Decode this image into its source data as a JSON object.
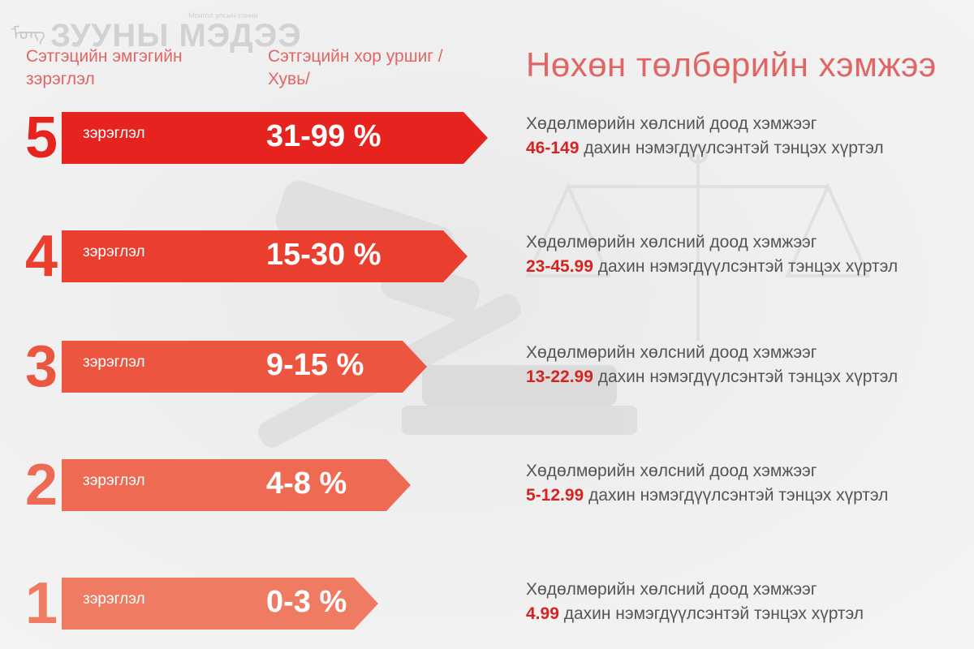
{
  "logo": {
    "name": "ЗУУНЫ МЭДЭЭ",
    "tagline": "Монгол улсын сонин"
  },
  "headers": {
    "level": "Сэтгэцийн эмгэгийн зэрэглэл",
    "harm": "Сэтгэцийн хор уршиг /Хувь/",
    "title": "Нөхөн төлбөрийн хэмжээ"
  },
  "colors": {
    "level5": "#e6231e",
    "level4": "#ea3e2e",
    "level3": "#ec5641",
    "level2": "#ee6a52",
    "level1": "#ef7c62",
    "header_text": "#e06666",
    "highlight": "#d7231f"
  },
  "rows": [
    {
      "level": "5",
      "level_word": "зэрэглэл",
      "percent": "31-99 %",
      "desc_line1": "Хөдөлмөрийн хөлсний доод хэмжээг",
      "times": "46-149",
      "desc_line2": " дахин нэмэгдүүлсэнтэй тэнцэх хүртэл"
    },
    {
      "level": "4",
      "level_word": "зэрэглэл",
      "percent": "15-30 %",
      "desc_line1": "Хөдөлмөрийн хөлсний доод хэмжээг",
      "times": "23-45.99",
      "desc_line2": " дахин нэмэгдүүлсэнтэй тэнцэх хүртэл"
    },
    {
      "level": "3",
      "level_word": "зэрэглэл",
      "percent": "9-15 %",
      "desc_line1": "Хөдөлмөрийн хөлсний доод хэмжээг",
      "times": "13-22.99",
      "desc_line2": " дахин нэмэгдүүлсэнтэй тэнцэх хүртэл"
    },
    {
      "level": "2",
      "level_word": "зэрэглэл",
      "percent": "4-8 %",
      "desc_line1": "Хөдөлмөрийн хөлсний доод хэмжээг",
      "times": "5-12.99",
      "desc_line2": " дахин нэмэгдүүлсэнтэй тэнцэх хүртэл"
    },
    {
      "level": "1",
      "level_word": "зэрэглэл",
      "percent": "0-3 %",
      "desc_line1": "Хөдөлмөрийн хөлсний доод хэмжээг",
      "times": "4.99",
      "desc_line2": " дахин нэмэгдүүлсэнтэй тэнцэх хүртэл"
    }
  ]
}
